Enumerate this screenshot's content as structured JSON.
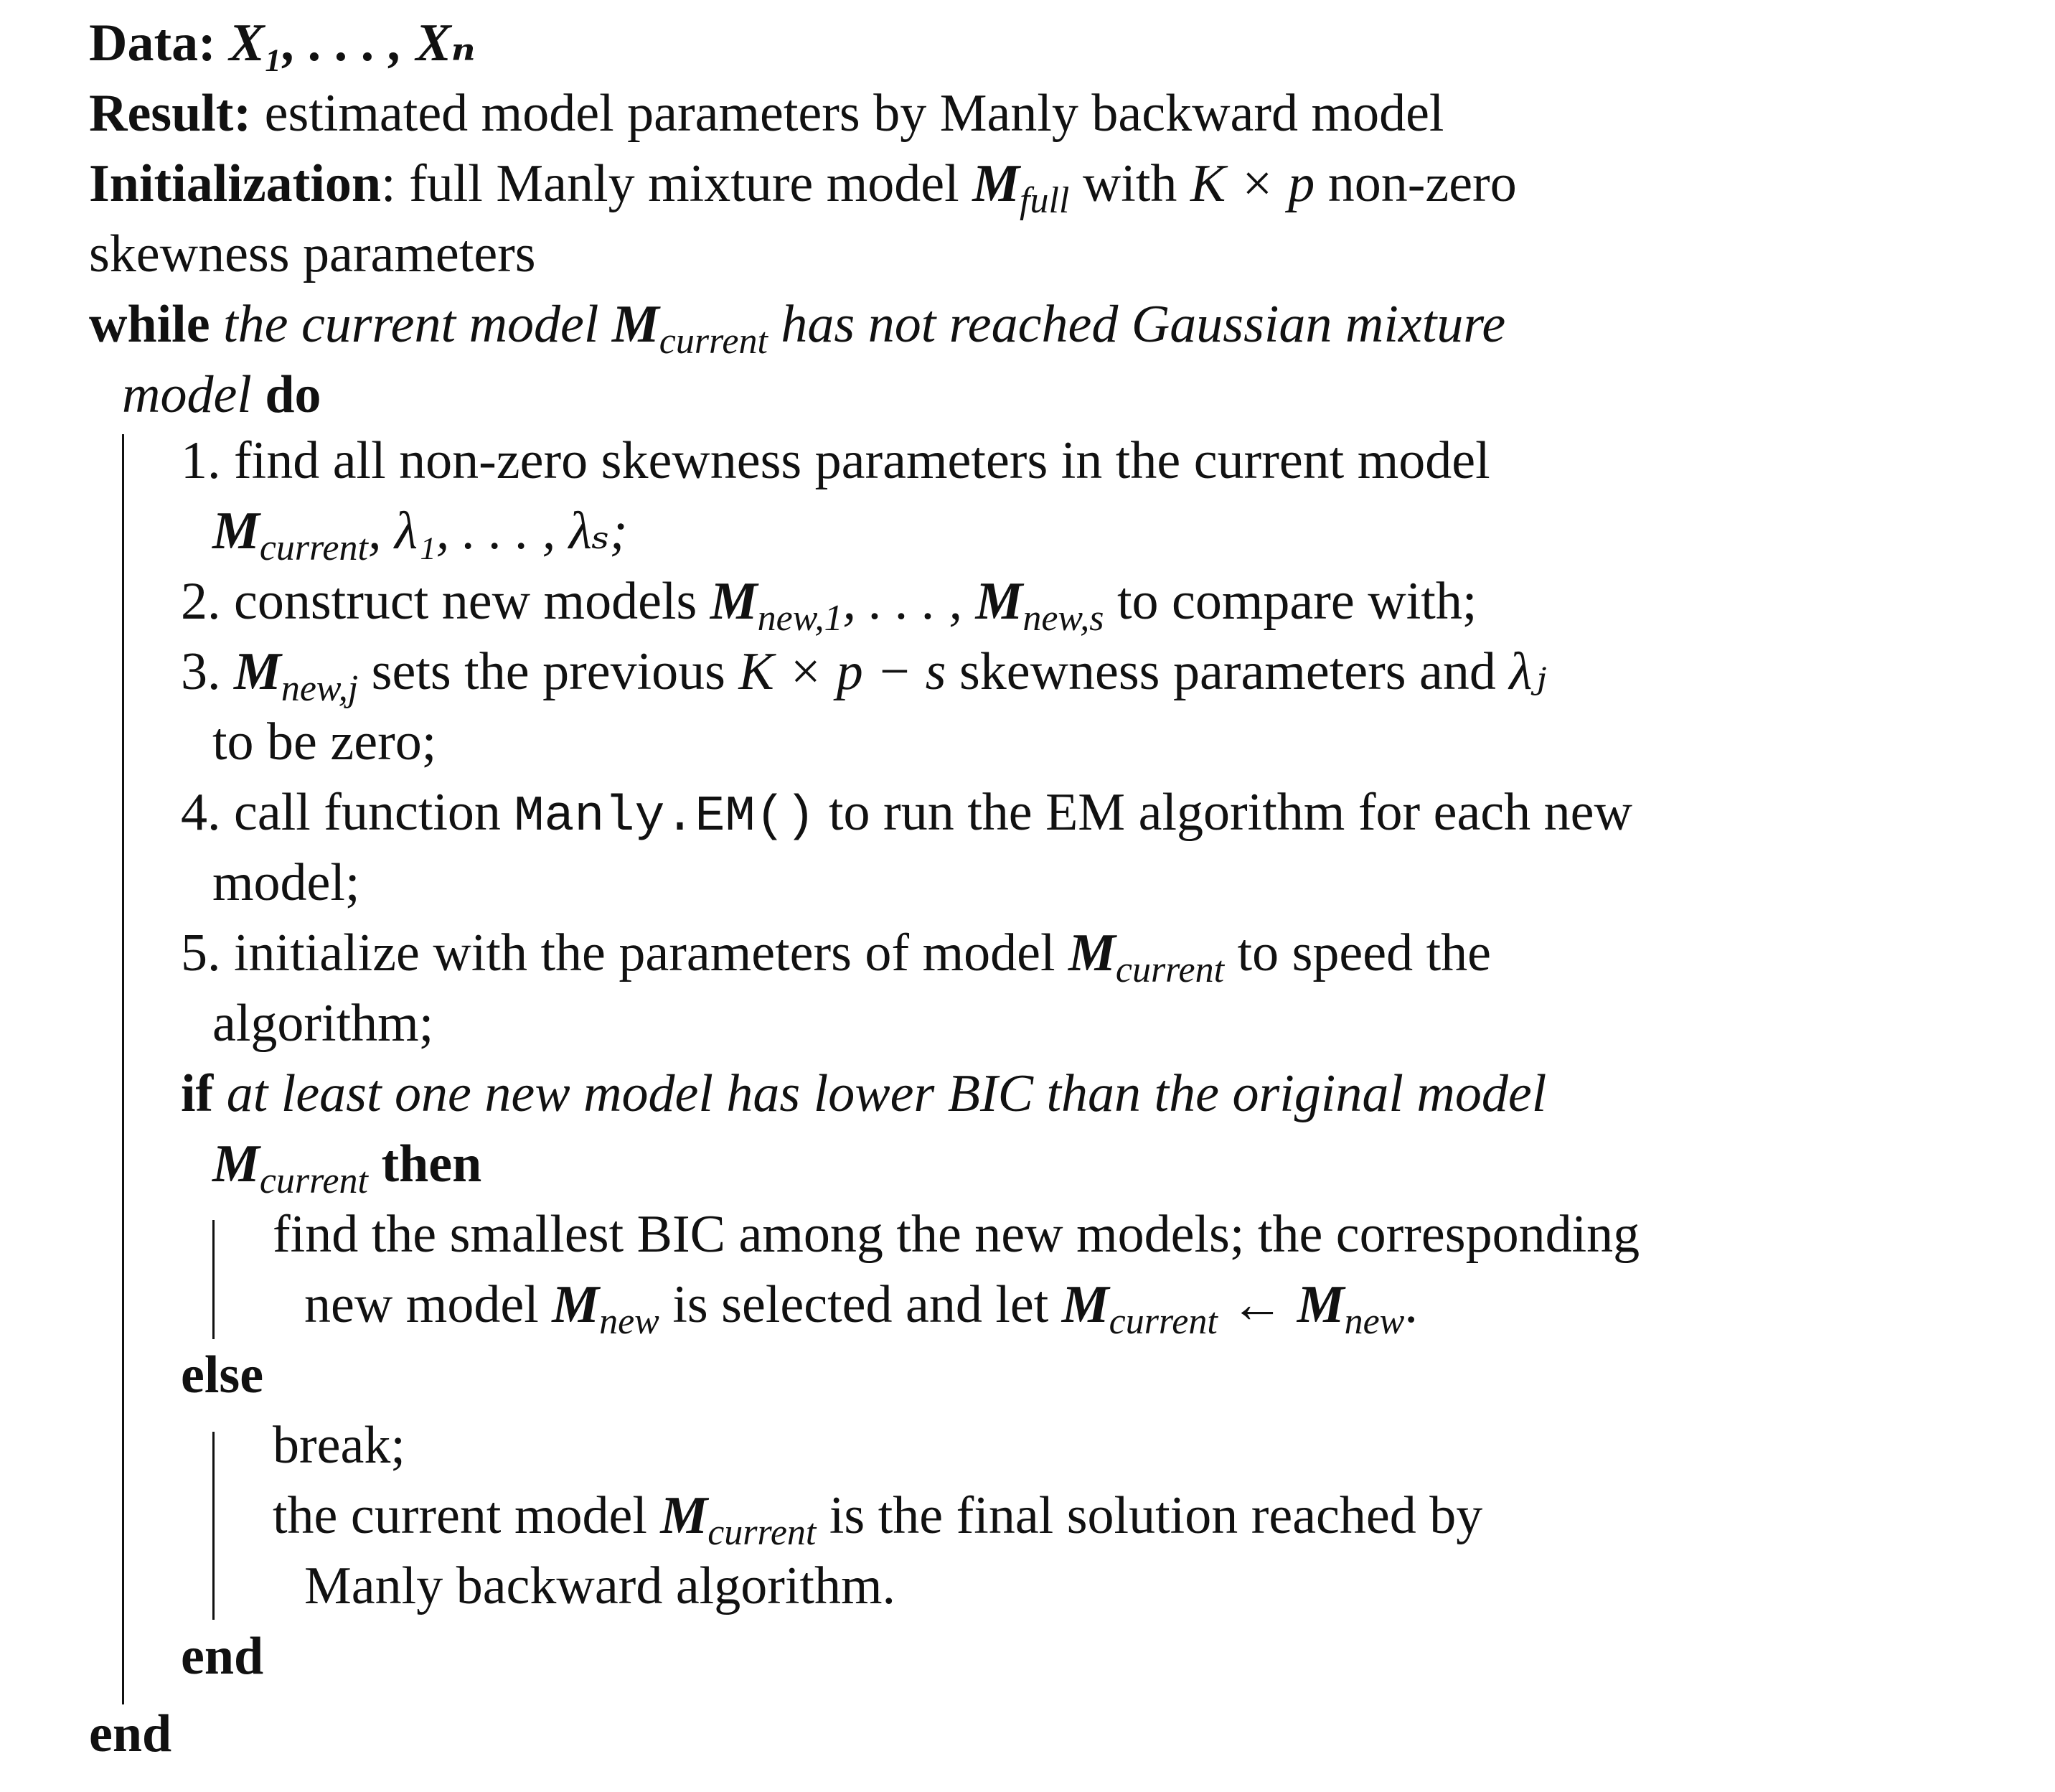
{
  "algorithm": {
    "data_kw": "Data:",
    "data_vars": "X₁, . . . , Xₙ",
    "result_kw": "Result:",
    "result_text": "estimated model parameters by Manly backward model",
    "init_kw": "Initialization",
    "init_text_1": ": full Manly mixture model",
    "m_sym": "M",
    "full_sub": "full",
    "init_text_2": "with",
    "k_times_p": "K × p",
    "init_text_3": "non-zero",
    "init_text_4": "skewness parameters",
    "while_kw": "while",
    "while_cond_1": "the current model",
    "current_sub": "current",
    "while_cond_2": "has not reached Gaussian mixture",
    "while_cond_3": "model",
    "do_kw": "do",
    "step1_a": "1. find all non-zero skewness parameters in the current model",
    "step1_b": ", λ₁, . . . , λₛ;",
    "step2_a": "2. construct new models",
    "new1_sub": "new,1",
    "step2_b": ", . . . ,",
    "news_sub": "new,s",
    "step2_c": "to compare with;",
    "step3_a": "3.",
    "newj_sub": "new,j",
    "step3_b": "sets the previous",
    "kps": "K × p − s",
    "step3_c": "skewness parameters and",
    "lambda_j": "λⱼ",
    "step3_d": "to be zero;",
    "step4_a": "4. call function",
    "step4_code": "Manly.EM()",
    "step4_b": "to run the EM algorithm for each new",
    "step4_c": "model;",
    "step5_a": "5. initialize with the parameters of model",
    "step5_b": "to speed the",
    "step5_c": "algorithm;",
    "if_kw": "if",
    "if_cond": "at least one new model has lower BIC than the original model",
    "then_kw": "then",
    "then_text_1": "find the smallest BIC among the new models; the corresponding",
    "then_text_2a": "new model",
    "new_sub": "new",
    "then_text_2b": "is selected and let",
    "arrow": "←",
    "period": ".",
    "else_kw": "else",
    "break_text": "break;",
    "else_text_1a": "the current model",
    "else_text_1b": "is the final solution reached by",
    "else_text_2": "Manly backward algorithm.",
    "end_kw": "end"
  }
}
